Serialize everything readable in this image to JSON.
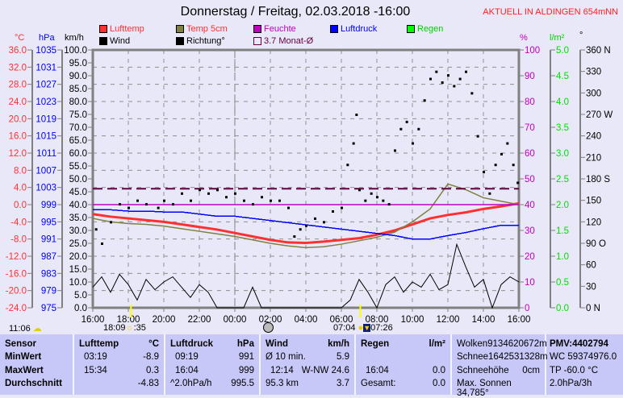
{
  "header": {
    "title": "Donnerstag / Freitag, 02.03.2018  -16:00",
    "station": "AKTUELL IN ALDINGEN 654mNN"
  },
  "legend": [
    {
      "label": "Lufttemp",
      "color": "#ff3030",
      "text_color": "#ff3030"
    },
    {
      "label": "Temp 5cm",
      "color": "#808040",
      "text_color": "#ff3030"
    },
    {
      "label": "Feuchte",
      "color": "#c000c0",
      "text_color": "#c000c0"
    },
    {
      "label": "Luftdruck",
      "color": "#0000ff",
      "text_color": "#0000ff"
    },
    {
      "label": "Regen",
      "color": "#00ff00",
      "text_color": "#00d000"
    },
    {
      "label": "Wind",
      "color": "#000000",
      "text_color": "#000000"
    },
    {
      "label": "Richtung°",
      "color": "#000000",
      "text_color": "#000000"
    },
    {
      "label": "3.7 Monat-Ø",
      "color": "#600040",
      "text_color": "#600040",
      "outline": true
    }
  ],
  "units": {
    "temp": "°C",
    "pressure": "hPa",
    "wind": "km/h",
    "humidity": "%",
    "rain": "l/m²",
    "direction": "°"
  },
  "chart_data": {
    "type": "line",
    "xlabels": [
      "16:00",
      "18:00",
      "20:00",
      "22:00",
      "00:00",
      "02:00",
      "04:00",
      "06:00",
      "08:00",
      "10:00",
      "12:00",
      "14:00",
      "16:00"
    ],
    "axes": {
      "temp": {
        "range": [
          -24,
          36
        ],
        "ticks": [
          "36.0",
          "32.0",
          "28.0",
          "24.0",
          "20.0",
          "16.0",
          "12.0",
          "8.0",
          "4.0",
          "0.0",
          "-4.0",
          "-8.0",
          "-12.0",
          "-16.0",
          "-20.0",
          "-24.0"
        ],
        "color": "#ff3030"
      },
      "pressure": {
        "range": [
          975,
          1035
        ],
        "ticks": [
          "1035",
          "1031",
          "1027",
          "1023",
          "1019",
          "1015",
          "1011",
          "1007",
          "1003",
          "999",
          "995",
          "991",
          "987",
          "983",
          "979",
          "975"
        ],
        "color": "#0000ff"
      },
      "wind": {
        "range": [
          0,
          100
        ],
        "ticks": [
          "100.0",
          "95.0",
          "90.0",
          "85.0",
          "80.0",
          "75.0",
          "70.0",
          "65.0",
          "60.0",
          "55.0",
          "50.0",
          "45.0",
          "40.0",
          "35.0",
          "30.0",
          "25.0",
          "20.0",
          "15.0",
          "10.0",
          "5.0",
          "0.0"
        ],
        "color": "#000000"
      },
      "humidity": {
        "range": [
          0,
          100
        ],
        "ticks": [
          "100",
          "90",
          "80",
          "70",
          "60",
          "50",
          "40",
          "30",
          "20",
          "10",
          "0"
        ],
        "color": "#c000c0"
      },
      "rain": {
        "range": [
          0,
          5
        ],
        "ticks": [
          "5.0",
          "4.5",
          "4.0",
          "3.5",
          "3.0",
          "2.5",
          "2.0",
          "1.5",
          "1.0",
          "0.5",
          "0.0"
        ],
        "color": "#00e000"
      },
      "direction": {
        "range": [
          0,
          360
        ],
        "ticks": [
          "360 N",
          "330",
          "300",
          "270 W",
          "240",
          "210",
          "180 S",
          "150",
          "120",
          "90 O",
          "60",
          "30",
          "0 N"
        ],
        "color": "#000000"
      }
    },
    "times": [
      "16:00",
      "17:00",
      "18:00",
      "19:00",
      "20:00",
      "21:00",
      "22:00",
      "23:00",
      "00:00",
      "01:00",
      "02:00",
      "03:00",
      "04:00",
      "05:00",
      "06:00",
      "07:00",
      "08:00",
      "09:00",
      "10:00",
      "11:00",
      "12:00",
      "13:00",
      "14:00",
      "15:00",
      "16:00"
    ],
    "series": [
      {
        "name": "Lufttemp",
        "axis": "temp",
        "color": "#ff3030",
        "values": [
          -2.2,
          -2.8,
          -3.2,
          -3.6,
          -4.0,
          -4.6,
          -5.2,
          -5.8,
          -6.6,
          -7.4,
          -8.2,
          -8.8,
          -8.9,
          -8.6,
          -8.2,
          -7.8,
          -7.0,
          -6.0,
          -4.6,
          -3.2,
          -2.4,
          -1.8,
          -1.0,
          -0.4,
          0.3
        ]
      },
      {
        "name": "Temp 5cm",
        "axis": "temp",
        "color": "#808040",
        "values": [
          -3.2,
          -4.0,
          -4.4,
          -4.6,
          -5.0,
          -5.6,
          -6.2,
          -6.8,
          -7.4,
          -8.2,
          -9.0,
          -9.6,
          -10.0,
          -9.8,
          -9.2,
          -8.4,
          -7.6,
          -6.4,
          -4.0,
          -1.0,
          4.8,
          3.5,
          1.6,
          0.8,
          0.0
        ]
      },
      {
        "name": "Luftdruck",
        "axis": "pressure",
        "color": "#0000ff",
        "values": [
          997.8,
          997.8,
          997.5,
          997.5,
          997.3,
          997.3,
          996.8,
          996.3,
          996.3,
          995.8,
          995.3,
          994.8,
          994.3,
          993.8,
          993.3,
          992.8,
          992.3,
          991.8,
          991.0,
          991.0,
          991.8,
          992.5,
          993.4,
          994.2,
          994.2
        ]
      },
      {
        "name": "3.7 Monat-Ø",
        "axis": "temp",
        "color": "#600040",
        "dashed": true,
        "values": [
          3.7,
          3.7
        ]
      },
      {
        "name": "Feuchte",
        "axis": "humidity",
        "color": "#c000c0",
        "values": [
          40,
          40
        ]
      }
    ],
    "wind": {
      "axis": "wind",
      "color": "#000000",
      "start": "16:00",
      "interval_minutes": 30,
      "values": [
        8,
        12,
        6,
        13,
        9,
        3,
        11,
        7,
        10,
        12,
        8,
        4,
        9,
        6,
        0,
        0,
        0,
        0,
        8,
        0,
        0,
        0,
        0,
        0,
        0,
        0,
        0,
        0,
        0,
        3,
        11,
        6,
        0,
        9,
        12,
        6,
        10,
        8,
        13,
        7,
        9,
        24.6,
        16,
        8,
        11,
        0,
        9,
        12,
        10
      ]
    },
    "direction": {
      "axis": "direction",
      "color": "#000000",
      "points": [
        [
          "16:10",
          110
        ],
        [
          "16:30",
          90
        ],
        [
          "17:00",
          120
        ],
        [
          "17:30",
          145
        ],
        [
          "18:00",
          140
        ],
        [
          "18:30",
          150
        ],
        [
          "19:00",
          145
        ],
        [
          "19:40",
          140
        ],
        [
          "20:00",
          150
        ],
        [
          "20:30",
          145
        ],
        [
          "21:00",
          160
        ],
        [
          "21:30",
          150
        ],
        [
          "22:00",
          165
        ],
        [
          "22:30",
          160
        ],
        [
          "23:00",
          165
        ],
        [
          "23:30",
          155
        ],
        [
          "00:00",
          160
        ],
        [
          "00:30",
          150
        ],
        [
          "01:00",
          145
        ],
        [
          "01:30",
          155
        ],
        [
          "02:00",
          150
        ],
        [
          "02:30",
          150
        ],
        [
          "03:00",
          140
        ],
        [
          "03:20",
          100
        ],
        [
          "03:40",
          110
        ],
        [
          "04:00",
          115
        ],
        [
          "04:30",
          125
        ],
        [
          "05:00",
          120
        ],
        [
          "05:30",
          135
        ],
        [
          "06:00",
          140
        ],
        [
          "06:20",
          200
        ],
        [
          "06:40",
          230
        ],
        [
          "06:50",
          270
        ],
        [
          "07:00",
          165
        ],
        [
          "07:20",
          150
        ],
        [
          "07:40",
          160
        ],
        [
          "08:00",
          155
        ],
        [
          "08:20",
          150
        ],
        [
          "08:40",
          145
        ],
        [
          "09:00",
          220
        ],
        [
          "09:20",
          250
        ],
        [
          "09:40",
          260
        ],
        [
          "10:00",
          230
        ],
        [
          "10:20",
          250
        ],
        [
          "10:40",
          290
        ],
        [
          "11:00",
          320
        ],
        [
          "11:20",
          330
        ],
        [
          "11:40",
          315
        ],
        [
          "12:00",
          325
        ],
        [
          "12:20",
          310
        ],
        [
          "12:40",
          320
        ],
        [
          "13:00",
          330
        ],
        [
          "13:20",
          300
        ],
        [
          "13:40",
          240
        ],
        [
          "14:00",
          190
        ],
        [
          "14:20",
          160
        ],
        [
          "14:40",
          200
        ],
        [
          "15:00",
          215
        ],
        [
          "15:20",
          230
        ],
        [
          "15:40",
          200
        ],
        [
          "15:55",
          175
        ]
      ]
    },
    "sun_markers": [
      {
        "time": "18:09",
        "color": "#ffff00"
      },
      {
        "time": "07:04",
        "color": "#ffff00"
      }
    ]
  },
  "bottom_info": {
    "moonrise": "11:06",
    "sunset": "18:09",
    "day_len": ":35",
    "sunrise": "07:04",
    "moonset": "07:26"
  },
  "table": {
    "sensor": {
      "h": "Sensor",
      "rows": [
        "MinWert",
        "MaxWert",
        "Durchschnitt"
      ]
    },
    "lufttemp": {
      "h": "Lufttemp",
      "u": "°C",
      "rows": [
        [
          "03:19",
          "-8.9"
        ],
        [
          "15:34",
          "0.3"
        ],
        [
          "",
          "-4.83"
        ]
      ]
    },
    "luftdruck": {
      "h": "Luftdruck",
      "u": "hPa",
      "rows": [
        [
          "09:19",
          "991"
        ],
        [
          "16:04",
          "999"
        ],
        [
          "^2.0hPa/h",
          "995.5"
        ]
      ]
    },
    "wind": {
      "h": "Wind",
      "u": "km/h",
      "rows": [
        [
          "Ø 10 min.",
          "5.9"
        ],
        [
          "12:14",
          "W-NW 24.6"
        ],
        [
          "95.3 km",
          "3.7"
        ]
      ]
    },
    "regen": {
      "h": "Regen",
      "u": "l/m²",
      "rows": [
        [
          "",
          ""
        ],
        [
          "16:04",
          "0.0"
        ],
        [
          "Gesamt:",
          "0.0"
        ]
      ]
    },
    "extra": {
      "rows": [
        [
          "Wolken9134620672m",
          ""
        ],
        [
          "Schnee1642531328m",
          ""
        ],
        [
          "Schneehöhe",
          "0cm"
        ],
        [
          "Max. Sonnen 34,785°",
          ""
        ]
      ]
    },
    "pmv": {
      "h": "PMV:4402794",
      "rows": [
        "WC 59374976.0",
        "TP -60.0 °C",
        "2.0hPa/3h"
      ]
    }
  }
}
